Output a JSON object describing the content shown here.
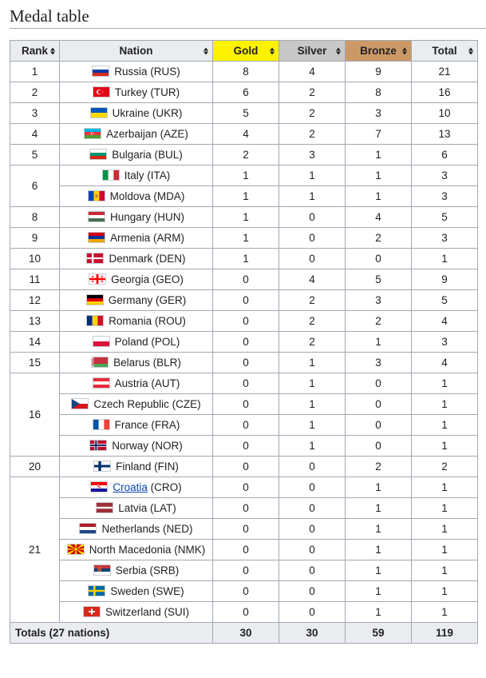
{
  "heading": "Medal table",
  "columns": {
    "rank": "Rank",
    "nation": "Nation",
    "gold": "Gold",
    "silver": "Silver",
    "bronze": "Bronze",
    "total": "Total"
  },
  "colors": {
    "gold": "#fff200",
    "silver": "#c8c8c8",
    "bronze": "#cc9966",
    "header": "#eaecf0",
    "link": "#0645ad"
  },
  "rows": [
    {
      "rank": "1",
      "nation": "Russia (RUS)",
      "flag": "RUS",
      "gold": "8",
      "silver": "4",
      "bronze": "9",
      "total": "21"
    },
    {
      "rank": "2",
      "nation": "Turkey (TUR)",
      "flag": "TUR",
      "gold": "6",
      "silver": "2",
      "bronze": "8",
      "total": "16"
    },
    {
      "rank": "3",
      "nation": "Ukraine (UKR)",
      "flag": "UKR",
      "gold": "5",
      "silver": "2",
      "bronze": "3",
      "total": "10"
    },
    {
      "rank": "4",
      "nation": "Azerbaijan (AZE)",
      "flag": "AZE",
      "gold": "4",
      "silver": "2",
      "bronze": "7",
      "total": "13"
    },
    {
      "rank": "5",
      "nation": "Bulgaria (BUL)",
      "flag": "BUL",
      "gold": "2",
      "silver": "3",
      "bronze": "1",
      "total": "6"
    },
    {
      "rank": "6",
      "rowspan": 2,
      "nation": "Italy (ITA)",
      "flag": "ITA",
      "gold": "1",
      "silver": "1",
      "bronze": "1",
      "total": "3"
    },
    {
      "nation": "Moldova (MDA)",
      "flag": "MDA",
      "gold": "1",
      "silver": "1",
      "bronze": "1",
      "total": "3"
    },
    {
      "rank": "8",
      "nation": "Hungary (HUN)",
      "flag": "HUN",
      "gold": "1",
      "silver": "0",
      "bronze": "4",
      "total": "5"
    },
    {
      "rank": "9",
      "nation": "Armenia (ARM)",
      "flag": "ARM",
      "gold": "1",
      "silver": "0",
      "bronze": "2",
      "total": "3"
    },
    {
      "rank": "10",
      "nation": "Denmark (DEN)",
      "flag": "DEN",
      "gold": "1",
      "silver": "0",
      "bronze": "0",
      "total": "1"
    },
    {
      "rank": "11",
      "nation": "Georgia (GEO)",
      "flag": "GEO",
      "gold": "0",
      "silver": "4",
      "bronze": "5",
      "total": "9"
    },
    {
      "rank": "12",
      "nation": "Germany (GER)",
      "flag": "GER",
      "gold": "0",
      "silver": "2",
      "bronze": "3",
      "total": "5"
    },
    {
      "rank": "13",
      "nation": "Romania (ROU)",
      "flag": "ROU",
      "gold": "0",
      "silver": "2",
      "bronze": "2",
      "total": "4"
    },
    {
      "rank": "14",
      "nation": "Poland (POL)",
      "flag": "POL",
      "gold": "0",
      "silver": "2",
      "bronze": "1",
      "total": "3"
    },
    {
      "rank": "15",
      "nation": "Belarus (BLR)",
      "flag": "BLR",
      "gold": "0",
      "silver": "1",
      "bronze": "3",
      "total": "4"
    },
    {
      "rank": "16",
      "rowspan": 4,
      "nation": "Austria (AUT)",
      "flag": "AUT",
      "gold": "0",
      "silver": "1",
      "bronze": "0",
      "total": "1"
    },
    {
      "nation": "Czech Republic (CZE)",
      "flag": "CZE",
      "gold": "0",
      "silver": "1",
      "bronze": "0",
      "total": "1"
    },
    {
      "nation": "France (FRA)",
      "flag": "FRA",
      "gold": "0",
      "silver": "1",
      "bronze": "0",
      "total": "1"
    },
    {
      "nation": "Norway (NOR)",
      "flag": "NOR",
      "gold": "0",
      "silver": "1",
      "bronze": "0",
      "total": "1"
    },
    {
      "rank": "20",
      "nation": "Finland (FIN)",
      "flag": "FIN",
      "gold": "0",
      "silver": "0",
      "bronze": "2",
      "total": "2"
    },
    {
      "rank": "21",
      "rowspan": 7,
      "nation_link": "Croatia",
      "nation_suffix": " (CRO)",
      "flag": "CRO",
      "gold": "0",
      "silver": "0",
      "bronze": "1",
      "total": "1"
    },
    {
      "nation": "Latvia (LAT)",
      "flag": "LAT",
      "gold": "0",
      "silver": "0",
      "bronze": "1",
      "total": "1"
    },
    {
      "nation": "Netherlands (NED)",
      "flag": "NED",
      "gold": "0",
      "silver": "0",
      "bronze": "1",
      "total": "1"
    },
    {
      "nation": "North Macedonia (NMK)",
      "flag": "NMK",
      "gold": "0",
      "silver": "0",
      "bronze": "1",
      "total": "1"
    },
    {
      "nation": "Serbia (SRB)",
      "flag": "SRB",
      "gold": "0",
      "silver": "0",
      "bronze": "1",
      "total": "1"
    },
    {
      "nation": "Sweden (SWE)",
      "flag": "SWE",
      "gold": "0",
      "silver": "0",
      "bronze": "1",
      "total": "1"
    },
    {
      "nation": "Switzerland (SUI)",
      "flag": "SUI",
      "gold": "0",
      "silver": "0",
      "bronze": "1",
      "total": "1"
    }
  ],
  "totals": {
    "label": "Totals (27 nations)",
    "gold": "30",
    "silver": "30",
    "bronze": "59",
    "total": "119"
  }
}
